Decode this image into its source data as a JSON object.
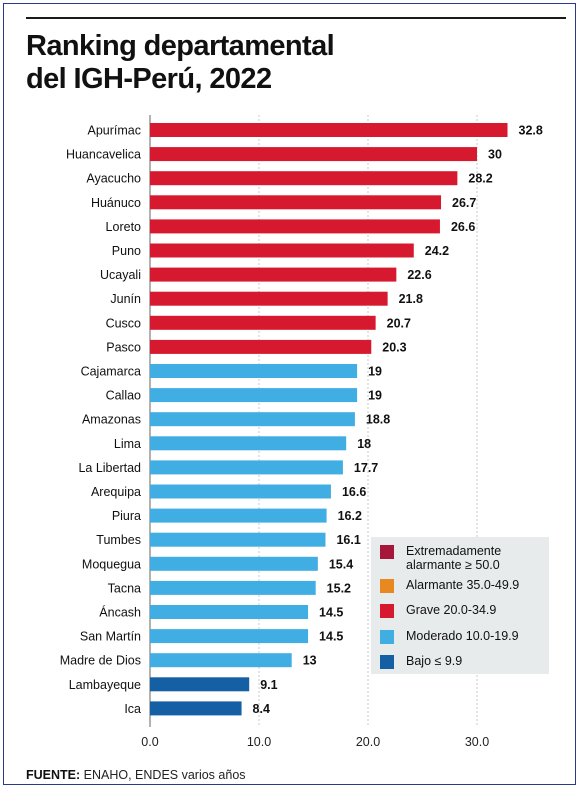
{
  "title_line1": "Ranking departamental",
  "title_line2": "del IGH-Perú, 2022",
  "source_label": "FUENTE:",
  "source_text": "ENAHO, ENDES varios años",
  "legend": [
    {
      "label": "Extremadamente alarmante ≥ 50.0",
      "color": "#a6163b"
    },
    {
      "label": "Alarmante 35.0-49.9",
      "color": "#e8891f"
    },
    {
      "label": "Grave 20.0-34.9",
      "color": "#d7192f"
    },
    {
      "label": "Moderado 10.0-19.9",
      "color": "#41aee3"
    },
    {
      "label": "Bajo ≤ 9.9",
      "color": "#1560a4"
    }
  ],
  "chart_data": {
    "type": "bar",
    "orientation": "horizontal",
    "title": "Ranking departamental del IGH-Perú, 2022",
    "xlim": [
      0,
      33
    ],
    "x_ticks": [
      "0.0",
      "10.0",
      "20.0",
      "30.0"
    ],
    "x_tick_values": [
      0,
      10,
      20,
      30
    ],
    "categories": [
      "Apurímac",
      "Huancavelica",
      "Ayacucho",
      "Huánuco",
      "Loreto",
      "Puno",
      "Ucayali",
      "Junín",
      "Cusco",
      "Pasco",
      "Cajamarca",
      "Callao",
      "Amazonas",
      "Lima",
      "La Libertad",
      "Arequipa",
      "Piura",
      "Tumbes",
      "Moquegua",
      "Tacna",
      "Áncash",
      "San Martín",
      "Madre de Dios",
      "Lambayeque",
      "Ica"
    ],
    "values": [
      32.8,
      30,
      28.2,
      26.7,
      26.6,
      24.2,
      22.6,
      21.8,
      20.7,
      20.3,
      19,
      19,
      18.8,
      18,
      17.7,
      16.6,
      16.2,
      16.1,
      15.4,
      15.2,
      14.5,
      14.5,
      13,
      9.1,
      8.4
    ],
    "value_labels": [
      "32.8",
      "30",
      "28.2",
      "26.7",
      "26.6",
      "24.2",
      "22.6",
      "21.8",
      "20.7",
      "20.3",
      "19",
      "19",
      "18.8",
      "18",
      "17.7",
      "16.6",
      "16.2",
      "16.1",
      "15.4",
      "15.2",
      "14.5",
      "14.5",
      "13",
      "9.1",
      "8.4"
    ],
    "bar_colors": [
      "#d7192f",
      "#d7192f",
      "#d7192f",
      "#d7192f",
      "#d7192f",
      "#d7192f",
      "#d7192f",
      "#d7192f",
      "#d7192f",
      "#d7192f",
      "#41aee3",
      "#41aee3",
      "#41aee3",
      "#41aee3",
      "#41aee3",
      "#41aee3",
      "#41aee3",
      "#41aee3",
      "#41aee3",
      "#41aee3",
      "#41aee3",
      "#41aee3",
      "#41aee3",
      "#1560a4",
      "#1560a4"
    ],
    "grid": true
  }
}
